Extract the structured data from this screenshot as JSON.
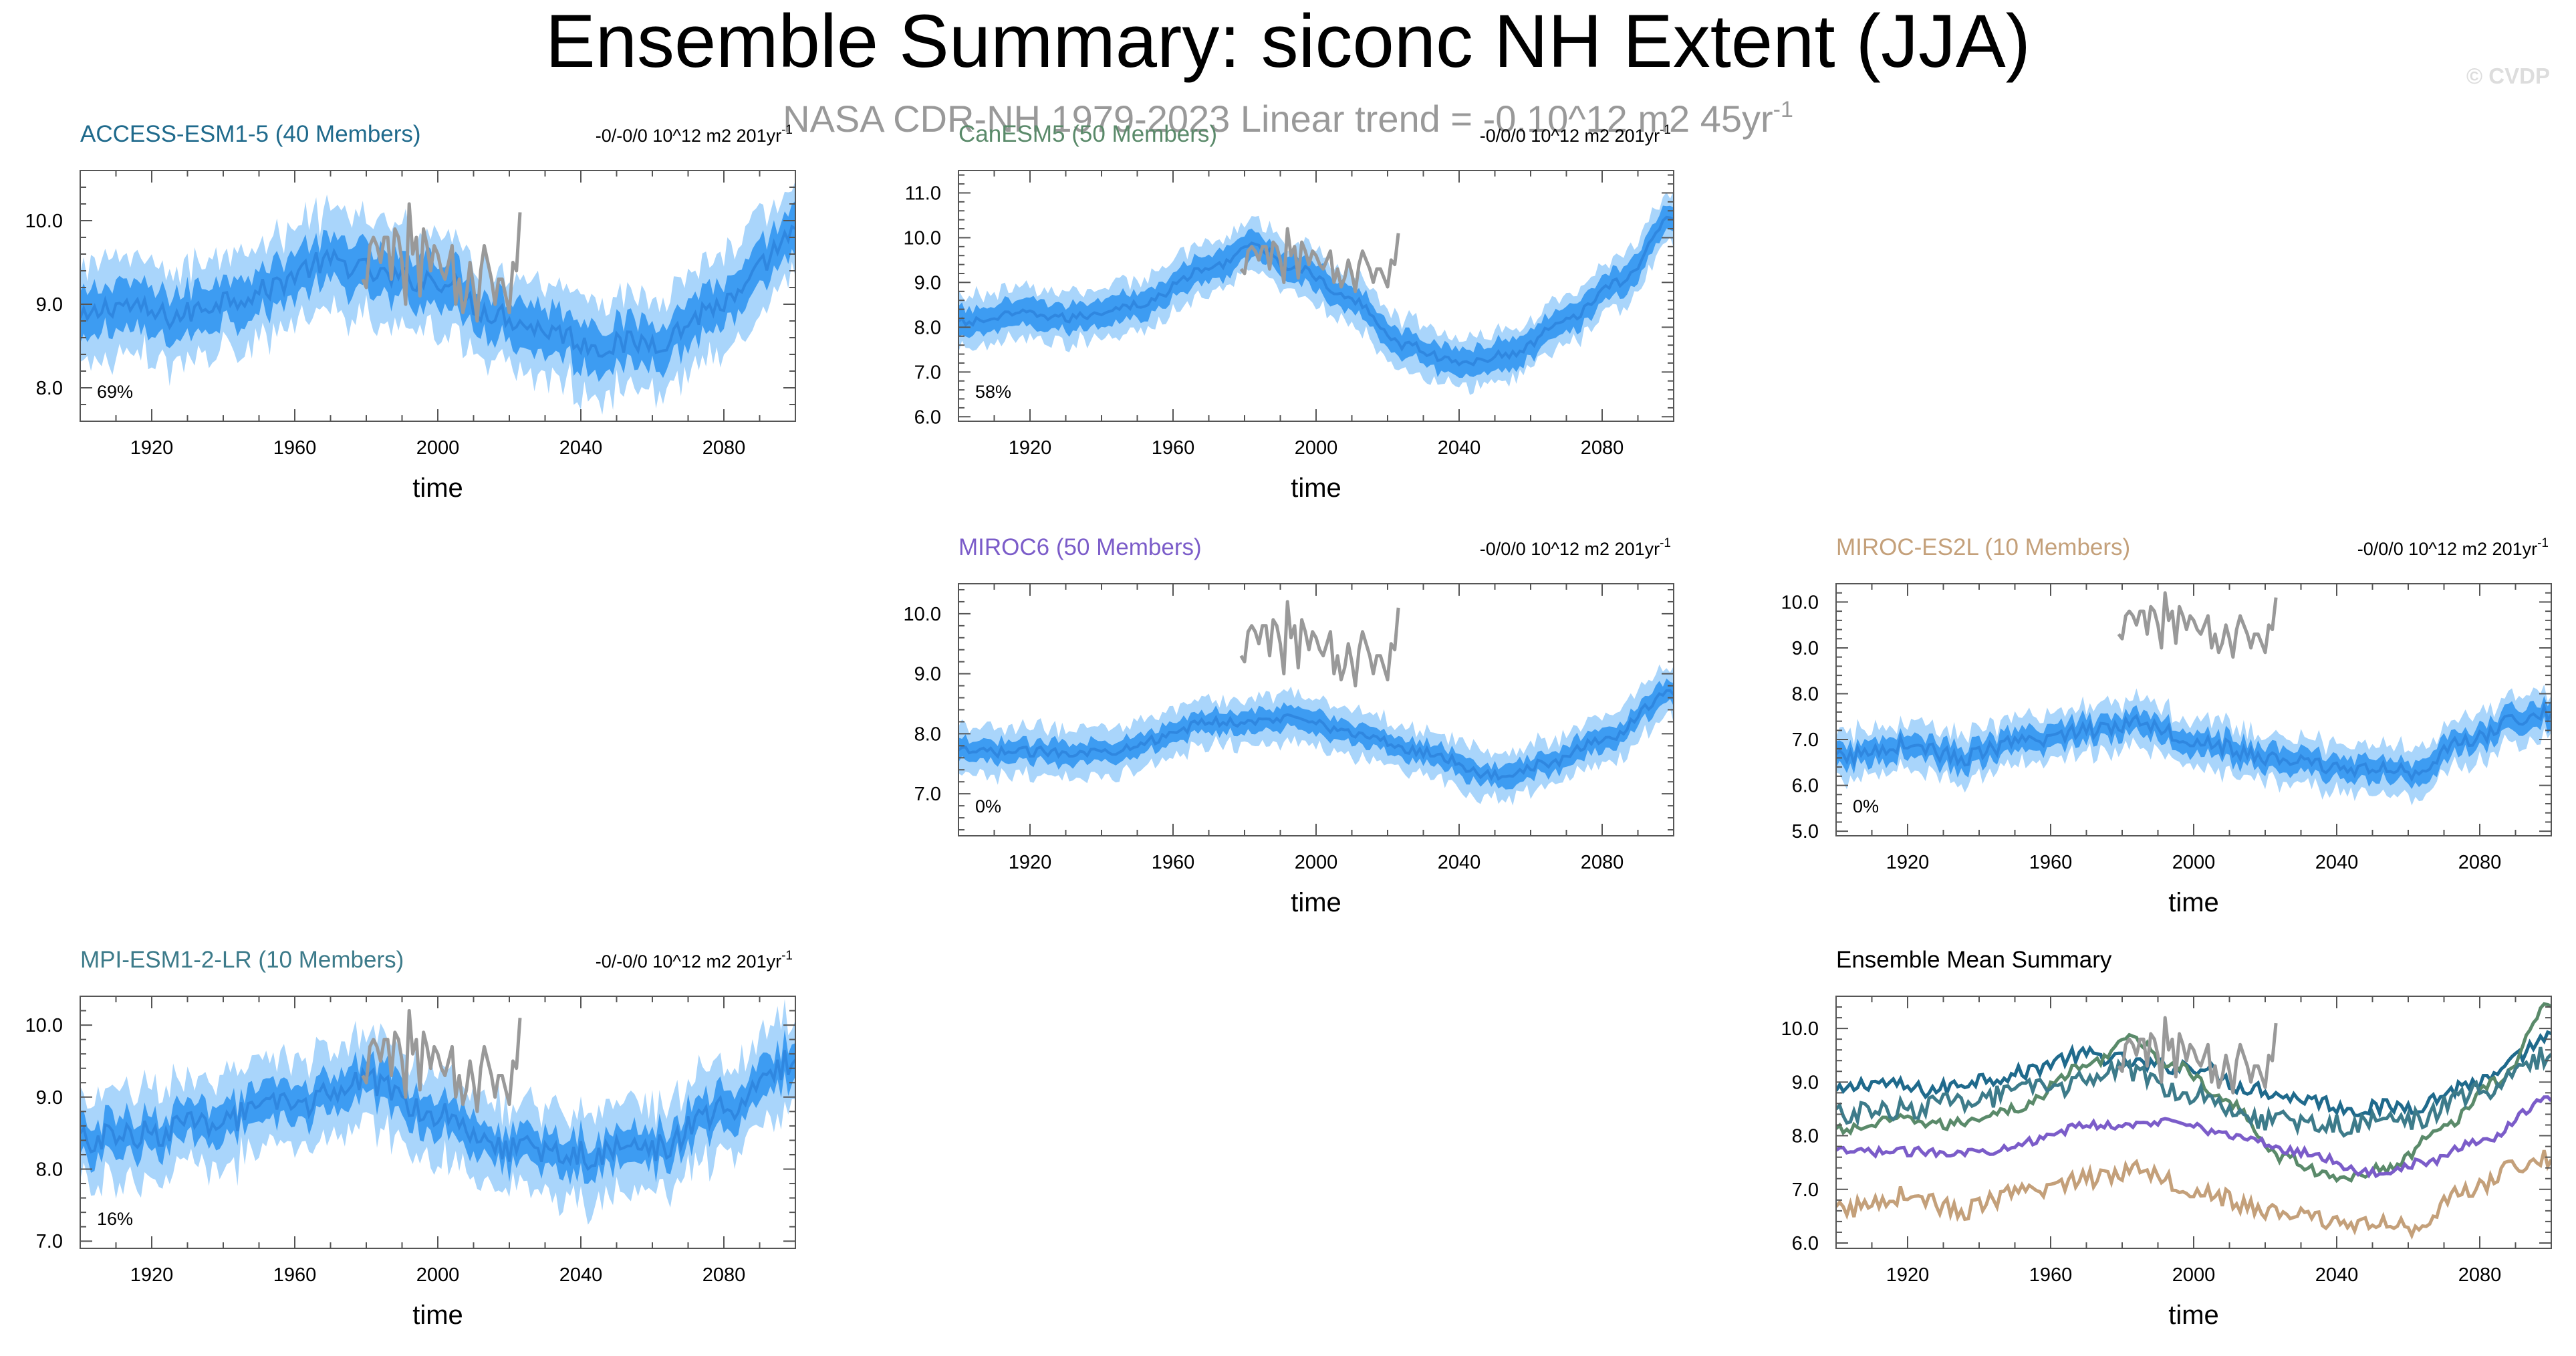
{
  "figure": {
    "title": "Ensemble Summary: siconc NH Extent (JJA)",
    "subtitle": "NASA CDR-NH 1979-2023  Linear trend = -0.10^12 m2 45yr",
    "subtitle_sup": "-1",
    "watermark": "© CVDP"
  },
  "colors": {
    "band_outer": "#a9d5fb",
    "band_inner": "#3d9cf2",
    "mean_line": "#2f87e0",
    "observations": "#999999",
    "axis": "#555555"
  },
  "chart_data": [
    {
      "type": "line",
      "id": "access",
      "title": "ACCESS-ESM1-5 (40 Members)",
      "title_color": "#1f6a8c",
      "corner_label": "-0/-0/0 10^12 m2 201yr",
      "corner_sup": "-1",
      "percent_label": "69%",
      "xlabel": "time",
      "xlim": [
        1900,
        2100
      ],
      "x_ticks": [
        1920,
        1960,
        2000,
        2040,
        2080
      ],
      "ylim": [
        7.6,
        10.6
      ],
      "y_ticks": [
        8.0,
        9.0,
        10.0
      ],
      "y_tick_labels": [
        "8.0",
        "9.0",
        "10.0"
      ],
      "mean_knots": [
        [
          1900,
          8.8
        ],
        [
          1910,
          9.0
        ],
        [
          1925,
          8.85
        ],
        [
          1945,
          9.1
        ],
        [
          1970,
          9.5
        ],
        [
          1990,
          9.3
        ],
        [
          2000,
          9.3
        ],
        [
          2015,
          8.9
        ],
        [
          2030,
          8.7
        ],
        [
          2045,
          8.5
        ],
        [
          2060,
          8.55
        ],
        [
          2080,
          9.0
        ],
        [
          2100,
          9.8
        ]
      ],
      "band_inner_half_width": 0.27,
      "band_outer_half_width": 0.55,
      "noise": 0.15
    },
    {
      "type": "line",
      "id": "canesm5",
      "title": "CanESM5 (50 Members)",
      "title_color": "#5a8a6a",
      "corner_label": "-0/0/0 10^12 m2 201yr",
      "corner_sup": "-1",
      "percent_label": "58%",
      "xlabel": "time",
      "xlim": [
        1900,
        2100
      ],
      "x_ticks": [
        1920,
        1960,
        2000,
        2040,
        2080
      ],
      "ylim": [
        5.9,
        11.5
      ],
      "y_ticks": [
        6.0,
        7.0,
        8.0,
        9.0,
        10.0,
        11.0
      ],
      "y_tick_labels": [
        "6.0",
        "7.0",
        "8.0",
        "9.0",
        "10.0",
        "11.0"
      ],
      "mean_knots": [
        [
          1900,
          8.1
        ],
        [
          1920,
          8.3
        ],
        [
          1930,
          8.2
        ],
        [
          1950,
          8.5
        ],
        [
          1970,
          9.3
        ],
        [
          1982,
          9.8
        ],
        [
          1995,
          9.3
        ],
        [
          2010,
          8.6
        ],
        [
          2025,
          7.6
        ],
        [
          2040,
          7.2
        ],
        [
          2055,
          7.4
        ],
        [
          2070,
          8.2
        ],
        [
          2085,
          9.0
        ],
        [
          2100,
          10.5
        ]
      ],
      "band_inner_half_width": 0.3,
      "band_outer_half_width": 0.55,
      "noise": 0.1
    },
    {
      "type": "line",
      "id": "miroc6",
      "title": "MIROC6 (50 Members)",
      "title_color": "#7b5cc9",
      "corner_label": "-0/0/0 10^12 m2 201yr",
      "corner_sup": "-1",
      "percent_label": "0%",
      "xlabel": "time",
      "xlim": [
        1900,
        2100
      ],
      "x_ticks": [
        1920,
        1960,
        2000,
        2040,
        2080
      ],
      "ylim": [
        6.3,
        10.5
      ],
      "y_ticks": [
        7.0,
        8.0,
        9.0,
        10.0
      ],
      "y_tick_labels": [
        "7.0",
        "8.0",
        "9.0",
        "10.0"
      ],
      "mean_knots": [
        [
          1900,
          7.7
        ],
        [
          1920,
          7.7
        ],
        [
          1940,
          7.7
        ],
        [
          1955,
          7.9
        ],
        [
          1970,
          8.2
        ],
        [
          1985,
          8.2
        ],
        [
          1995,
          8.3
        ],
        [
          2010,
          8.0
        ],
        [
          2030,
          7.7
        ],
        [
          2050,
          7.3
        ],
        [
          2065,
          7.5
        ],
        [
          2080,
          7.9
        ],
        [
          2100,
          8.7
        ]
      ],
      "band_inner_half_width": 0.18,
      "band_outer_half_width": 0.38,
      "noise": 0.08
    },
    {
      "type": "line",
      "id": "mirocs2l",
      "title": "MIROC-ES2L (10 Members)",
      "title_color": "#c4a07a",
      "corner_label": "-0/0/0 10^12 m2 201yr",
      "corner_sup": "-1",
      "percent_label": "0%",
      "xlabel": "time",
      "xlim": [
        1900,
        2100
      ],
      "x_ticks": [
        1920,
        1960,
        2000,
        2040,
        2080
      ],
      "ylim": [
        4.9,
        10.4
      ],
      "y_ticks": [
        5.0,
        6.0,
        7.0,
        8.0,
        9.0,
        10.0
      ],
      "y_tick_labels": [
        "5.0",
        "6.0",
        "7.0",
        "8.0",
        "9.0",
        "10.0"
      ],
      "mean_knots": [
        [
          1900,
          6.6
        ],
        [
          1920,
          6.9
        ],
        [
          1935,
          6.6
        ],
        [
          1950,
          6.9
        ],
        [
          1970,
          7.2
        ],
        [
          1985,
          7.4
        ],
        [
          2000,
          7.0
        ],
        [
          2020,
          6.6
        ],
        [
          2040,
          6.4
        ],
        [
          2060,
          6.3
        ],
        [
          2075,
          6.9
        ],
        [
          2090,
          7.4
        ],
        [
          2100,
          7.6
        ]
      ],
      "band_inner_half_width": 0.25,
      "band_outer_half_width": 0.5,
      "noise": 0.18
    },
    {
      "type": "line",
      "id": "mpi",
      "title": "MPI-ESM1-2-LR (10 Members)",
      "title_color": "#3d7b8a",
      "corner_label": "-0/-0/0 10^12 m2 201yr",
      "corner_sup": "-1",
      "percent_label": "16%",
      "xlabel": "time",
      "xlim": [
        1900,
        2100
      ],
      "x_ticks": [
        1920,
        1960,
        2000,
        2040,
        2080
      ],
      "ylim": [
        6.9,
        10.4
      ],
      "y_ticks": [
        7.0,
        8.0,
        9.0,
        10.0
      ],
      "y_tick_labels": [
        "7.0",
        "8.0",
        "9.0",
        "10.0"
      ],
      "mean_knots": [
        [
          1900,
          8.4
        ],
        [
          1920,
          8.5
        ],
        [
          1940,
          8.7
        ],
        [
          1960,
          8.9
        ],
        [
          1980,
          9.2
        ],
        [
          2000,
          8.8
        ],
        [
          2020,
          8.3
        ],
        [
          2040,
          8.2
        ],
        [
          2060,
          8.3
        ],
        [
          2080,
          8.8
        ],
        [
          2100,
          9.5
        ]
      ],
      "band_inner_half_width": 0.25,
      "band_outer_half_width": 0.6,
      "noise": 0.2
    },
    {
      "type": "line",
      "id": "summary",
      "title": "Ensemble Mean Summary",
      "title_color": "#000000",
      "xlabel": "time",
      "xlim": [
        1900,
        2100
      ],
      "x_ticks": [
        1920,
        1960,
        2000,
        2040,
        2080
      ],
      "ylim": [
        5.9,
        10.6
      ],
      "y_ticks": [
        6.0,
        7.0,
        8.0,
        9.0,
        10.0
      ],
      "y_tick_labels": [
        "6.0",
        "7.0",
        "8.0",
        "9.0",
        "10.0"
      ],
      "series": [
        {
          "name": "ACCESS-ESM1-5",
          "color": "#1f6a8c"
        },
        {
          "name": "CanESM5",
          "color": "#5a8a6a"
        },
        {
          "name": "MIROC6",
          "color": "#7b5cc9"
        },
        {
          "name": "MIROC-ES2L",
          "color": "#c4a07a"
        },
        {
          "name": "MPI-ESM1-2-LR",
          "color": "#3d7b8a"
        }
      ]
    }
  ],
  "observations": {
    "name": "NASA CDR-NH",
    "x": [
      1979,
      1980,
      1981,
      1982,
      1983,
      1984,
      1985,
      1986,
      1987,
      1988,
      1989,
      1990,
      1991,
      1992,
      1993,
      1994,
      1995,
      1996,
      1997,
      1998,
      1999,
      2000,
      2001,
      2002,
      2003,
      2004,
      2005,
      2006,
      2007,
      2008,
      2009,
      2010,
      2011,
      2012,
      2013,
      2014,
      2015,
      2016,
      2017,
      2018,
      2019,
      2020,
      2021,
      2022,
      2023
    ],
    "y": [
      9.3,
      9.2,
      9.7,
      9.8,
      9.7,
      9.5,
      9.8,
      9.8,
      9.3,
      9.9,
      9.8,
      9.5,
      9.0,
      10.2,
      9.6,
      9.8,
      9.1,
      9.9,
      9.7,
      9.4,
      9.7,
      9.6,
      9.4,
      9.3,
      9.5,
      9.7,
      9.0,
      9.3,
      8.9,
      9.1,
      9.5,
      9.2,
      8.8,
      9.4,
      9.7,
      9.5,
      9.3,
      9.0,
      9.3,
      9.3,
      9.1,
      8.9,
      9.5,
      9.4,
      10.1
    ]
  }
}
